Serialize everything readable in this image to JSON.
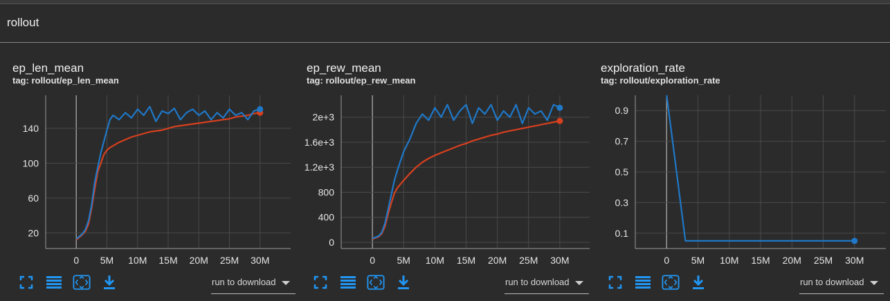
{
  "section": {
    "title": "rollout"
  },
  "toolbar": {
    "run_select_label": "run to download",
    "icons": [
      "fullscreen-icon",
      "list-icon",
      "fit-domain-icon",
      "download-icon"
    ]
  },
  "colors": {
    "series_blue": "#1f78c8",
    "series_red": "#d8401f",
    "background": "#2b2b2b",
    "grid": "#4a4a4a"
  },
  "cards": [
    {
      "title": "ep_len_mean",
      "tag": "tag: rollout/ep_len_mean"
    },
    {
      "title": "ep_rew_mean",
      "tag": "tag: rollout/ep_rew_mean"
    },
    {
      "title": "exploration_rate",
      "tag": "tag: rollout/exploration_rate"
    }
  ],
  "chart_data": [
    {
      "type": "line",
      "title": "",
      "xlabel": "",
      "ylabel": "",
      "x_ticks": [
        0,
        5000000,
        10000000,
        15000000,
        20000000,
        25000000,
        30000000
      ],
      "x_tick_labels": [
        "0",
        "5M",
        "10M",
        "15M",
        "20M",
        "25M",
        "30M"
      ],
      "y_ticks": [
        20,
        60,
        100,
        140
      ],
      "y_tick_labels": [
        "20",
        "60",
        "100",
        "140"
      ],
      "xlim": [
        -5000000,
        35000000
      ],
      "ylim": [
        2,
        178
      ],
      "grid": true,
      "series": [
        {
          "color": "#d8401f",
          "x": [
            0,
            500000,
            1000000,
            1500000,
            2000000,
            2500000,
            3000000,
            3500000,
            4000000,
            4500000,
            5000000,
            5500000,
            6000000,
            7000000,
            8000000,
            9000000,
            10000000,
            11000000,
            12000000,
            13000000,
            14000000,
            15000000,
            16000000,
            17000000,
            18000000,
            19000000,
            20000000,
            21000000,
            22000000,
            23000000,
            24000000,
            25000000,
            26000000,
            27000000,
            28000000,
            29000000,
            30000000
          ],
          "y": [
            12,
            15,
            18,
            22,
            30,
            48,
            70,
            90,
            100,
            110,
            115,
            118,
            120,
            124,
            127,
            130,
            132,
            134,
            136,
            137,
            138,
            140,
            142,
            143,
            144,
            145,
            146,
            147,
            148,
            149,
            150,
            151,
            153,
            154,
            155,
            157,
            158
          ]
        },
        {
          "color": "#1f78c8",
          "x": [
            0,
            500000,
            1000000,
            1500000,
            2000000,
            2500000,
            3000000,
            3500000,
            4000000,
            4500000,
            5000000,
            5500000,
            6000000,
            7000000,
            8000000,
            9000000,
            10000000,
            11000000,
            12000000,
            13000000,
            14000000,
            15000000,
            16000000,
            17000000,
            18000000,
            19000000,
            20000000,
            21000000,
            22000000,
            23000000,
            24000000,
            25000000,
            26000000,
            27000000,
            28000000,
            29000000,
            30000000
          ],
          "y": [
            13,
            16,
            19,
            24,
            34,
            52,
            78,
            95,
            112,
            125,
            138,
            150,
            155,
            150,
            158,
            152,
            162,
            155,
            165,
            148,
            160,
            157,
            163,
            150,
            158,
            162,
            155,
            160,
            150,
            158,
            152,
            162,
            155,
            158,
            150,
            160,
            162
          ]
        }
      ]
    },
    {
      "type": "line",
      "title": "",
      "xlabel": "",
      "ylabel": "",
      "x_ticks": [
        0,
        5000000,
        10000000,
        15000000,
        20000000,
        25000000,
        30000000
      ],
      "x_tick_labels": [
        "0",
        "5M",
        "10M",
        "15M",
        "20M",
        "25M",
        "30M"
      ],
      "y_ticks": [
        0,
        400,
        800,
        1200,
        1600,
        2000
      ],
      "y_tick_labels": [
        "0",
        "400",
        "800",
        "1.2e+3",
        "1.6e+3",
        "2e+3"
      ],
      "xlim": [
        -5000000,
        35000000
      ],
      "ylim": [
        -100,
        2350
      ],
      "grid": true,
      "series": [
        {
          "color": "#d8401f",
          "x": [
            0,
            500000,
            1000000,
            1500000,
            2000000,
            2500000,
            3000000,
            3500000,
            4000000,
            4500000,
            5000000,
            6000000,
            7000000,
            8000000,
            9000000,
            10000000,
            11000000,
            12000000,
            13000000,
            14000000,
            15000000,
            16000000,
            17000000,
            18000000,
            19000000,
            20000000,
            21000000,
            22000000,
            23000000,
            24000000,
            25000000,
            26000000,
            27000000,
            28000000,
            29000000,
            30000000
          ],
          "y": [
            50,
            70,
            90,
            140,
            250,
            450,
            620,
            780,
            870,
            930,
            990,
            1100,
            1200,
            1280,
            1340,
            1390,
            1430,
            1470,
            1510,
            1550,
            1580,
            1620,
            1650,
            1680,
            1710,
            1730,
            1760,
            1780,
            1800,
            1820,
            1840,
            1860,
            1880,
            1900,
            1920,
            1940
          ]
        },
        {
          "color": "#1f78c8",
          "x": [
            0,
            500000,
            1000000,
            1500000,
            2000000,
            2500000,
            3000000,
            3500000,
            4000000,
            4500000,
            5000000,
            6000000,
            7000000,
            8000000,
            9000000,
            10000000,
            11000000,
            12000000,
            13000000,
            14000000,
            15000000,
            16000000,
            17000000,
            18000000,
            19000000,
            20000000,
            21000000,
            22000000,
            23000000,
            24000000,
            25000000,
            26000000,
            27000000,
            28000000,
            29000000,
            30000000
          ],
          "y": [
            60,
            80,
            100,
            160,
            300,
            520,
            750,
            980,
            1150,
            1300,
            1450,
            1650,
            1900,
            2050,
            1950,
            2150,
            2000,
            2200,
            1950,
            2100,
            2200,
            1900,
            2150,
            2050,
            2200,
            1950,
            2100,
            2000,
            2200,
            1900,
            2150,
            2050,
            2100,
            1950,
            2200,
            2150
          ]
        }
      ]
    },
    {
      "type": "line",
      "title": "",
      "xlabel": "",
      "ylabel": "",
      "x_ticks": [
        0,
        5000000,
        10000000,
        15000000,
        20000000,
        25000000,
        30000000
      ],
      "x_tick_labels": [
        "0",
        "5M",
        "10M",
        "15M",
        "20M",
        "25M",
        "30M"
      ],
      "y_ticks": [
        0.1,
        0.3,
        0.5,
        0.7,
        0.9
      ],
      "y_tick_labels": [
        "0.1",
        "0.3",
        "0.5",
        "0.7",
        "0.9"
      ],
      "xlim": [
        -5000000,
        35000000
      ],
      "ylim": [
        0.0,
        1.0
      ],
      "grid": true,
      "series": [
        {
          "color": "#1f78c8",
          "x": [
            0,
            3000000,
            30000000
          ],
          "y": [
            1.0,
            0.05,
            0.05
          ]
        }
      ]
    }
  ]
}
